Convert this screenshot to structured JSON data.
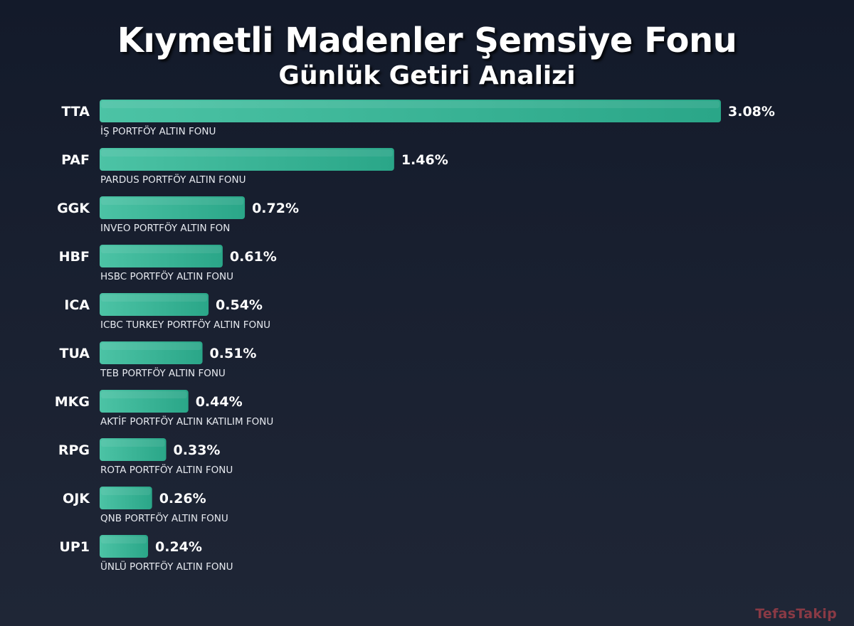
{
  "chart_data": {
    "type": "bar",
    "orientation": "horizontal",
    "title": "Kıymetli Madenler Şemsiye Fonu",
    "subtitle": "Günlük Getiri Analizi",
    "categories": [
      "TTA",
      "PAF",
      "GGK",
      "HBF",
      "ICA",
      "TUA",
      "MKG",
      "RPG",
      "OJK",
      "UP1"
    ],
    "fund_names": [
      "İŞ PORTFÖY ALTIN FONU",
      "PARDUS PORTFÖY ALTIN FONU",
      "INVEO PORTFÖY ALTIN FON",
      "HSBC PORTFÖY ALTIN FONU",
      "ICBC TURKEY PORTFÖY ALTIN FONU",
      "TEB PORTFÖY ALTIN FONU",
      "AKTİF PORTFÖY ALTIN KATILIM FONU",
      "ROTA PORTFÖY ALTIN FONU",
      "QNB PORTFÖY ALTIN FONU",
      "ÜNLÜ PORTFÖY ALTIN FONU"
    ],
    "values": [
      3.08,
      1.46,
      0.72,
      0.61,
      0.54,
      0.51,
      0.44,
      0.33,
      0.26,
      0.24
    ],
    "value_labels": [
      "3.08%",
      "1.46%",
      "0.72%",
      "0.61%",
      "0.54%",
      "0.51%",
      "0.44%",
      "0.33%",
      "0.26%",
      "0.24%"
    ],
    "xlim": [
      0,
      3.08
    ],
    "grid": false,
    "legend": "none",
    "bar_color": "#4cc3a5",
    "bar_color_dark": "#2aa688"
  },
  "watermark": "TefasTakip"
}
